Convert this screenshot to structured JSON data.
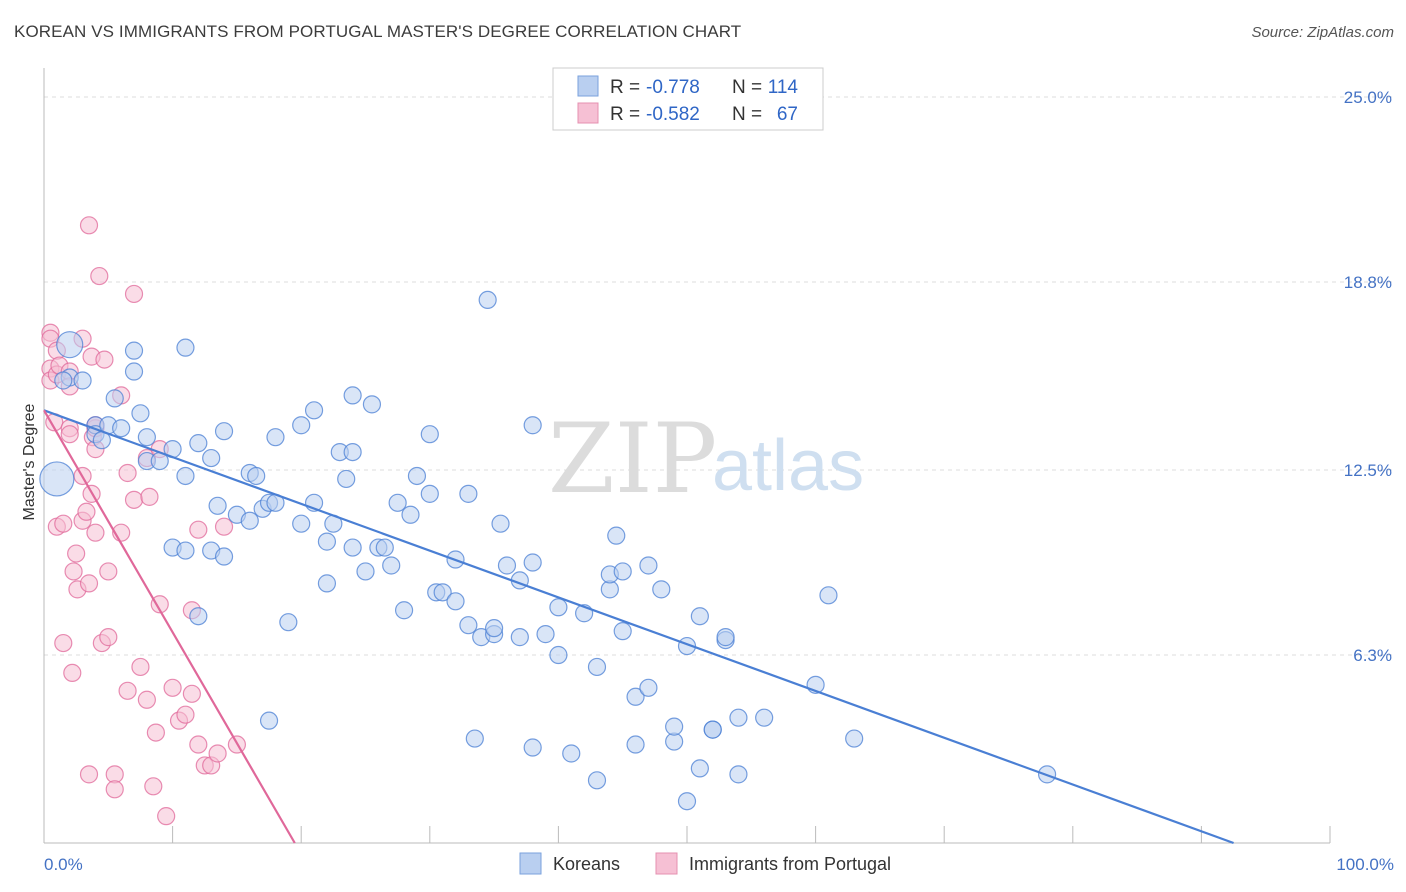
{
  "title": "KOREAN VS IMMIGRANTS FROM PORTUGAL MASTER'S DEGREE CORRELATION CHART",
  "source": "Source: ZipAtlas.com",
  "watermark": {
    "zip": "ZIP",
    "atlas": "atlas"
  },
  "colors": {
    "korean": "#4a7fd4",
    "korean_fill": "#b9cff0",
    "portugal": "#e0689a",
    "portugal_fill": "#f6c0d4"
  },
  "legend": {
    "r_label": "R =",
    "n_label": "N =",
    "rows": [
      {
        "r": "-0.778",
        "n": "114"
      },
      {
        "r": "-0.582",
        "n": "67"
      }
    ]
  },
  "chart_data": {
    "type": "scatter",
    "title": "KOREAN VS IMMIGRANTS FROM PORTUGAL MASTER'S DEGREE CORRELATION CHART",
    "xlabel": "",
    "ylabel": "Master's Degree",
    "xlim": [
      0,
      100
    ],
    "ylim": [
      0,
      25
    ],
    "x_tick_labels": [
      "0.0%",
      "100.0%"
    ],
    "y_ticks": [
      6.3,
      12.5,
      18.8,
      25.0
    ],
    "y_tick_labels": [
      "6.3%",
      "12.5%",
      "18.8%",
      "25.0%"
    ],
    "grid": true,
    "legend_position": "top-center",
    "series": [
      {
        "name": "Koreans",
        "trend": {
          "x": [
            0,
            92.5
          ],
          "y": [
            14.5,
            0
          ]
        },
        "points": [
          [
            1,
            12.2
          ],
          [
            2,
            16.7
          ],
          [
            2,
            15.6
          ],
          [
            1.5,
            15.5
          ],
          [
            3,
            15.5
          ],
          [
            4,
            14
          ],
          [
            4,
            13.7
          ],
          [
            4.5,
            13.5
          ],
          [
            5,
            14
          ],
          [
            5.5,
            14.9
          ],
          [
            6,
            13.9
          ],
          [
            7,
            16.5
          ],
          [
            7,
            15.8
          ],
          [
            7.5,
            14.4
          ],
          [
            8,
            13.6
          ],
          [
            8,
            12.8
          ],
          [
            9,
            12.8
          ],
          [
            10,
            9.9
          ],
          [
            10,
            13.2
          ],
          [
            11,
            12.3
          ],
          [
            11,
            16.6
          ],
          [
            11,
            9.8
          ],
          [
            12,
            13.4
          ],
          [
            12,
            7.6
          ],
          [
            13,
            9.8
          ],
          [
            13,
            12.9
          ],
          [
            13.5,
            11.3
          ],
          [
            14,
            9.6
          ],
          [
            14,
            13.8
          ],
          [
            15,
            11
          ],
          [
            16,
            12.4
          ],
          [
            16,
            10.8
          ],
          [
            16.5,
            12.3
          ],
          [
            17,
            11.2
          ],
          [
            17.5,
            11.4
          ],
          [
            17.5,
            4.1
          ],
          [
            18,
            13.6
          ],
          [
            18,
            11.4
          ],
          [
            19,
            7.4
          ],
          [
            20,
            10.7
          ],
          [
            20,
            14
          ],
          [
            21,
            14.5
          ],
          [
            21,
            11.4
          ],
          [
            22,
            10.1
          ],
          [
            22,
            8.7
          ],
          [
            22.5,
            10.7
          ],
          [
            23,
            13.1
          ],
          [
            23.5,
            12.2
          ],
          [
            24,
            9.9
          ],
          [
            24,
            13.1
          ],
          [
            24,
            15
          ],
          [
            25,
            9.1
          ],
          [
            25.5,
            14.7
          ],
          [
            26,
            9.9
          ],
          [
            26.5,
            9.9
          ],
          [
            27,
            9.3
          ],
          [
            27.5,
            11.4
          ],
          [
            28,
            7.8
          ],
          [
            28.5,
            11
          ],
          [
            29,
            12.3
          ],
          [
            30,
            13.7
          ],
          [
            30,
            11.7
          ],
          [
            30.5,
            8.4
          ],
          [
            31,
            8.4
          ],
          [
            32,
            8.1
          ],
          [
            32,
            9.5
          ],
          [
            33,
            7.3
          ],
          [
            33,
            11.7
          ],
          [
            33.5,
            3.5
          ],
          [
            34,
            6.9
          ],
          [
            34.5,
            18.2
          ],
          [
            35,
            7
          ],
          [
            35,
            7.2
          ],
          [
            35.5,
            10.7
          ],
          [
            36,
            9.3
          ],
          [
            37,
            6.9
          ],
          [
            37,
            8.8
          ],
          [
            38,
            9.4
          ],
          [
            38,
            14
          ],
          [
            38,
            3.2
          ],
          [
            39,
            7
          ],
          [
            40,
            7.9
          ],
          [
            40,
            6.3
          ],
          [
            41,
            3
          ],
          [
            42,
            7.7
          ],
          [
            43,
            5.9
          ],
          [
            43,
            2.1
          ],
          [
            44,
            8.5
          ],
          [
            44,
            9
          ],
          [
            44.5,
            10.3
          ],
          [
            45,
            9.1
          ],
          [
            45,
            7.1
          ],
          [
            46,
            3.3
          ],
          [
            46,
            4.9
          ],
          [
            47,
            9.3
          ],
          [
            47,
            5.2
          ],
          [
            48,
            8.5
          ],
          [
            49,
            3.4
          ],
          [
            49,
            3.9
          ],
          [
            50,
            1.4
          ],
          [
            50,
            6.6
          ],
          [
            51,
            7.6
          ],
          [
            51,
            2.5
          ],
          [
            52,
            3.8
          ],
          [
            52,
            3.8
          ],
          [
            53,
            6.8
          ],
          [
            53,
            6.9
          ],
          [
            54,
            4.2
          ],
          [
            54,
            2.3
          ],
          [
            56,
            4.2
          ],
          [
            60,
            5.3
          ],
          [
            61,
            8.3
          ],
          [
            63,
            3.5
          ],
          [
            78,
            2.3
          ]
        ]
      },
      {
        "name": "Immigrants from Portugal",
        "trend": {
          "x": [
            0,
            19.5
          ],
          "y": [
            14.5,
            0
          ]
        },
        "points": [
          [
            0.5,
            17.1
          ],
          [
            0.5,
            16.9
          ],
          [
            0.5,
            15.9
          ],
          [
            0.5,
            15.5
          ],
          [
            0.8,
            14.1
          ],
          [
            1,
            16.5
          ],
          [
            1,
            15.7
          ],
          [
            1,
            10.6
          ],
          [
            1.2,
            16
          ],
          [
            1.5,
            10.7
          ],
          [
            1.5,
            6.7
          ],
          [
            2,
            13.9
          ],
          [
            2,
            15.8
          ],
          [
            2,
            13.7
          ],
          [
            2,
            15.3
          ],
          [
            2.2,
            5.7
          ],
          [
            2.3,
            9.1
          ],
          [
            2.5,
            9.7
          ],
          [
            2.6,
            8.5
          ],
          [
            3,
            16.9
          ],
          [
            3,
            10.8
          ],
          [
            3,
            12.3
          ],
          [
            3.3,
            11.1
          ],
          [
            3.5,
            2.3
          ],
          [
            3.5,
            8.7
          ],
          [
            3.5,
            20.7
          ],
          [
            3.7,
            11.7
          ],
          [
            3.7,
            16.3
          ],
          [
            3.8,
            13.6
          ],
          [
            4,
            13.2
          ],
          [
            4,
            13.9
          ],
          [
            4,
            14
          ],
          [
            4,
            10.4
          ],
          [
            4.3,
            19
          ],
          [
            4.5,
            6.7
          ],
          [
            4.7,
            16.2
          ],
          [
            5,
            9.1
          ],
          [
            5,
            6.9
          ],
          [
            5.5,
            2.3
          ],
          [
            5.5,
            1.8
          ],
          [
            6,
            15
          ],
          [
            6,
            10.4
          ],
          [
            6.5,
            5.1
          ],
          [
            6.5,
            12.4
          ],
          [
            7,
            11.5
          ],
          [
            7,
            18.4
          ],
          [
            7.5,
            5.9
          ],
          [
            8,
            4.8
          ],
          [
            8,
            12.9
          ],
          [
            8.2,
            11.6
          ],
          [
            8.5,
            1.9
          ],
          [
            8.7,
            3.7
          ],
          [
            9,
            8
          ],
          [
            9,
            13.2
          ],
          [
            9.5,
            0.9
          ],
          [
            10,
            5.2
          ],
          [
            10.5,
            4.1
          ],
          [
            11,
            4.3
          ],
          [
            11.5,
            7.8
          ],
          [
            11.5,
            5
          ],
          [
            12,
            10.5
          ],
          [
            12,
            3.3
          ],
          [
            12.5,
            2.6
          ],
          [
            13,
            2.6
          ],
          [
            13.5,
            3
          ],
          [
            14,
            10.6
          ],
          [
            15,
            3.3
          ]
        ]
      }
    ]
  }
}
